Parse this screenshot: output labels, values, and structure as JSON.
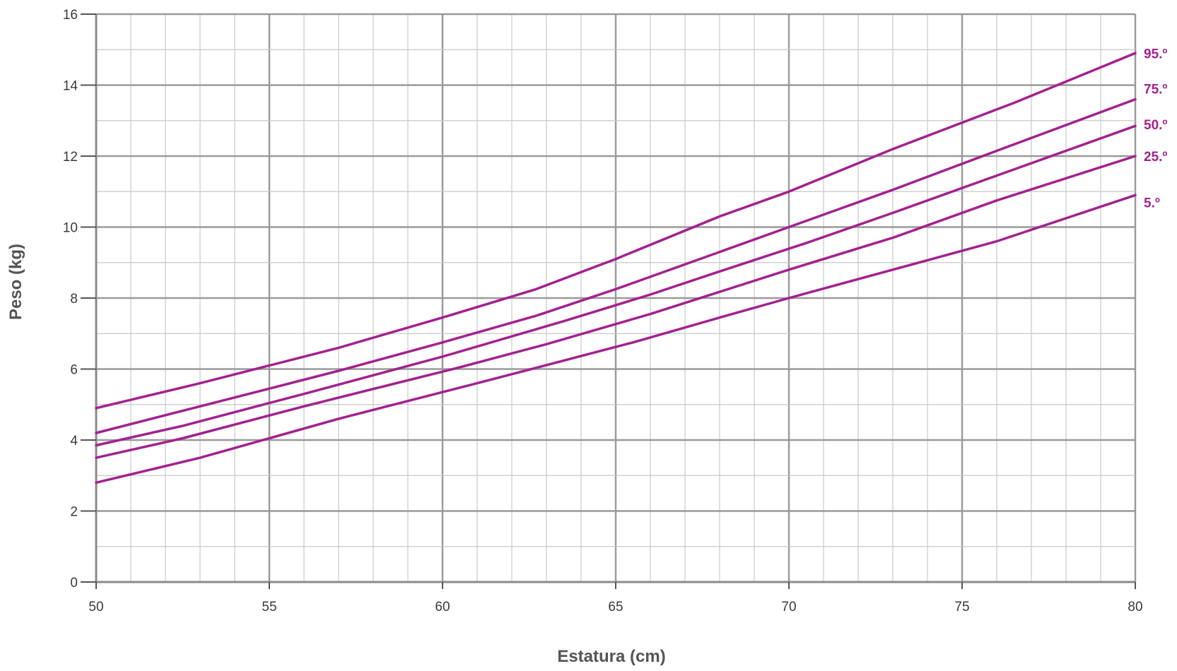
{
  "chart_data": {
    "type": "line",
    "title": "",
    "xlabel": "Estatura (cm)",
    "ylabel": "Peso (kg)",
    "xlim": [
      50,
      80
    ],
    "ylim": [
      0,
      16
    ],
    "x_ticks": [
      50,
      55,
      60,
      65,
      70,
      75,
      80
    ],
    "y_ticks": [
      0,
      2,
      4,
      6,
      8,
      10,
      12,
      14,
      16
    ],
    "x_minor_step": 1,
    "y_minor_step": 1,
    "grid": true,
    "line_color": "#a3218f",
    "major_grid_color": "#9a9a9a",
    "minor_grid_color": "#c8c8c8",
    "series": [
      {
        "name": "95.º",
        "x": [
          50,
          53,
          57,
          60,
          62.7,
          65,
          68,
          70,
          73,
          76.5,
          80
        ],
        "y": [
          4.9,
          5.6,
          6.6,
          7.45,
          8.25,
          9.1,
          10.3,
          11.0,
          12.2,
          13.5,
          14.9
        ]
      },
      {
        "name": "75.º",
        "x": [
          50,
          53,
          57,
          60,
          62.7,
          65,
          68,
          70,
          73,
          76,
          80
        ],
        "y": [
          4.2,
          4.95,
          5.95,
          6.75,
          7.5,
          8.25,
          9.3,
          10.0,
          11.05,
          12.15,
          13.6
        ]
      },
      {
        "name": "50.º",
        "x": [
          50,
          52.5,
          56,
          60,
          63.5,
          66,
          68,
          70.5,
          73,
          76,
          80
        ],
        "y": [
          3.85,
          4.4,
          5.3,
          6.35,
          7.35,
          8.1,
          8.75,
          9.55,
          10.4,
          11.45,
          12.85
        ]
      },
      {
        "name": "25.º",
        "x": [
          50,
          52.5,
          56,
          60.5,
          63,
          66,
          70,
          73,
          76,
          80
        ],
        "y": [
          3.5,
          4.05,
          4.95,
          6.05,
          6.7,
          7.55,
          8.8,
          9.7,
          10.75,
          12.0
        ]
      },
      {
        "name": "5.º",
        "x": [
          50,
          53,
          57,
          61,
          65.5,
          68,
          70,
          73,
          76,
          80
        ],
        "y": [
          2.8,
          3.5,
          4.6,
          5.6,
          6.75,
          7.45,
          8.0,
          8.8,
          9.6,
          10.9
        ]
      }
    ]
  }
}
